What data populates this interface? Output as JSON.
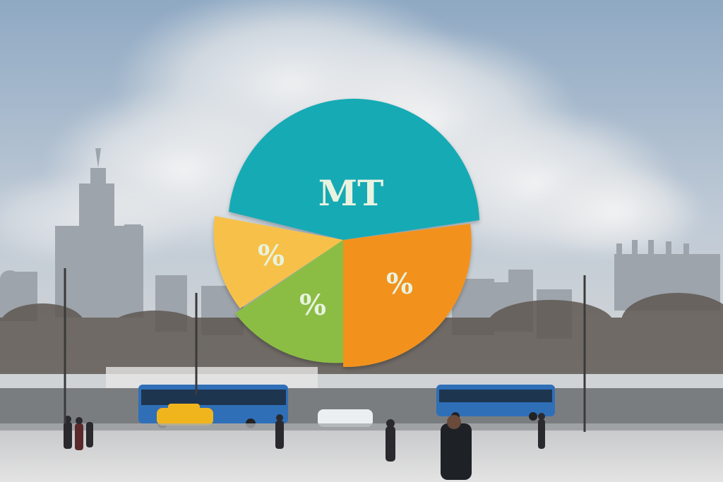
{
  "pie": {
    "title_label": "MT",
    "slice_labels": [
      "%",
      "%",
      "%"
    ],
    "colors": {
      "teal": "#19aab5",
      "orange": "#f2921e",
      "green": "#8bbd45",
      "yellow": "#f7c14a"
    }
  },
  "scene": {
    "sky": "#b8c6d6",
    "ground": "#dcdcdc"
  }
}
